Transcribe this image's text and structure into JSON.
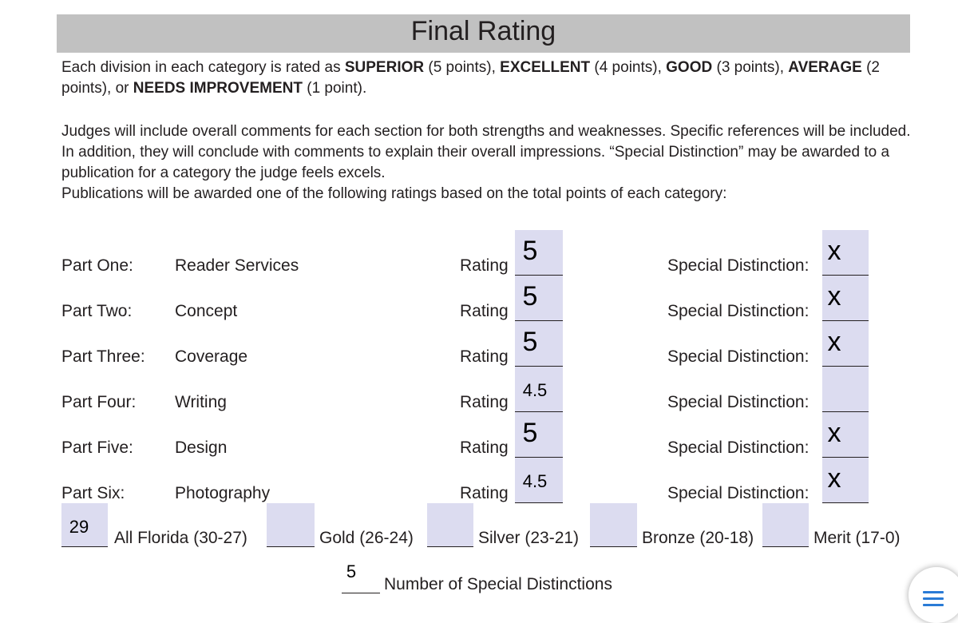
{
  "title": "Final Rating",
  "intro": {
    "p1": [
      {
        "text": "Each division in each category is rated as ",
        "bold": false
      },
      {
        "text": "SUPERIOR",
        "bold": true
      },
      {
        "text": " (5 points), ",
        "bold": false
      },
      {
        "text": "EXCELLENT",
        "bold": true
      },
      {
        "text": " (4 points), ",
        "bold": false
      },
      {
        "text": "GOOD",
        "bold": true
      },
      {
        "text": " (3 points), ",
        "bold": false
      },
      {
        "text": "AVERAGE",
        "bold": true
      },
      {
        "text": " (2 points), or ",
        "bold": false
      },
      {
        "text": "NEEDS IMPROVEMENT",
        "bold": true
      },
      {
        "text": " (1 point).",
        "bold": false
      }
    ],
    "p2": "Judges will include overall comments for each section for both strengths and weaknesses. Specific references will be included. In addition, they will conclude with comments to explain their overall impressions. “Special Distinction” may be awarded to a publication for a category the judge feels excels.",
    "p3": "Publications will be awarded one of the following ratings based on the total points of each category:"
  },
  "rating_label": "Rating",
  "special_label": "Special Distinction:",
  "parts": [
    {
      "part": "Part One:",
      "category": "Reader Services",
      "rating": "5",
      "special": "x"
    },
    {
      "part": "Part Two:",
      "category": "Concept",
      "rating": "5",
      "special": "x"
    },
    {
      "part": "Part Three:",
      "category": "Coverage",
      "rating": "5",
      "special": "x"
    },
    {
      "part": "Part Four:",
      "category": "Writing",
      "rating": "4.5",
      "special": ""
    },
    {
      "part": "Part Five:",
      "category": "Design",
      "rating": "5",
      "special": "x"
    },
    {
      "part": "Part Six:",
      "category": "Photography",
      "rating": "4.5",
      "special": "x"
    }
  ],
  "awards": [
    {
      "label": "All Florida (30-27)",
      "value": "29"
    },
    {
      "label": "Gold (26-24)",
      "value": ""
    },
    {
      "label": "Silver (23-21)",
      "value": ""
    },
    {
      "label": "Bronze (20-18)",
      "value": ""
    },
    {
      "label": "Merit (17-0)",
      "value": ""
    }
  ],
  "distinctions": {
    "label": "Number of Special Distinctions",
    "value": "5"
  },
  "colors": {
    "field": "#dcdcf0",
    "title_bar": "#c1c1c1",
    "menu_icon": "#2a7bd6"
  }
}
